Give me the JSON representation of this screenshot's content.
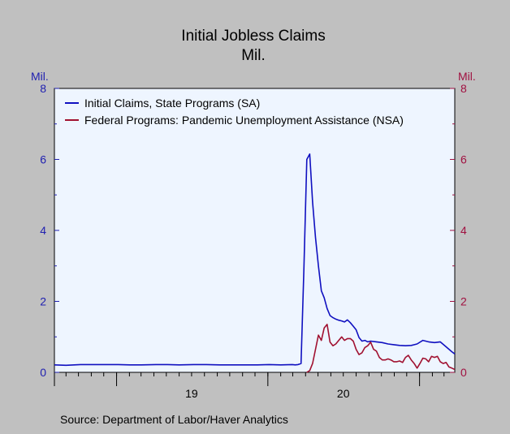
{
  "chart_data": {
    "type": "line",
    "title": "Initial Jobless Claims",
    "subtitle": "Mil.",
    "ylabel_left": "Mil.",
    "ylabel_right": "Mil.",
    "source": "Source: Department of Labor/Haver Analytics",
    "ylim": [
      0,
      8
    ],
    "y_ticks": [
      0,
      2,
      4,
      6,
      8
    ],
    "y_tick_labels": [
      "0",
      "2",
      "4",
      "6",
      "8"
    ],
    "x_range": [
      "2018-08-04",
      "2021-03-27"
    ],
    "x_year_labels": [
      {
        "label": "19",
        "date": "2019-07-01"
      },
      {
        "label": "20",
        "date": "2020-07-01"
      }
    ],
    "x_year_boundaries": [
      "2019-01-01",
      "2020-01-01",
      "2021-01-01"
    ],
    "legend_position": "top-left",
    "grid": false,
    "colors": {
      "background": "#c0c0c0",
      "plot_background": "#eef5ff",
      "left_axis": "#2020b0",
      "right_axis": "#a01040"
    },
    "series": [
      {
        "name": "Initial Claims, State Programs (SA)",
        "color": "#1010c0",
        "x": [
          "2018-08-04",
          "2018-09-01",
          "2018-10-06",
          "2018-11-03",
          "2018-12-01",
          "2019-01-05",
          "2019-02-02",
          "2019-03-02",
          "2019-04-06",
          "2019-05-04",
          "2019-06-01",
          "2019-07-06",
          "2019-08-03",
          "2019-09-07",
          "2019-10-05",
          "2019-11-02",
          "2019-12-07",
          "2020-01-04",
          "2020-02-01",
          "2020-02-29",
          "2020-03-07",
          "2020-03-14",
          "2020-03-21",
          "2020-03-28",
          "2020-04-04",
          "2020-04-11",
          "2020-04-18",
          "2020-04-25",
          "2020-05-02",
          "2020-05-09",
          "2020-05-16",
          "2020-05-23",
          "2020-05-30",
          "2020-06-06",
          "2020-06-13",
          "2020-06-20",
          "2020-06-27",
          "2020-07-04",
          "2020-07-11",
          "2020-07-18",
          "2020-07-25",
          "2020-08-01",
          "2020-08-08",
          "2020-08-15",
          "2020-08-22",
          "2020-08-29",
          "2020-09-05",
          "2020-09-19",
          "2020-10-03",
          "2020-10-17",
          "2020-10-31",
          "2020-11-14",
          "2020-11-28",
          "2020-12-12",
          "2020-12-26",
          "2021-01-09",
          "2021-01-23",
          "2021-02-06",
          "2021-02-20",
          "2021-03-06",
          "2021-03-20",
          "2021-03-27"
        ],
        "values": [
          0.21,
          0.2,
          0.22,
          0.22,
          0.22,
          0.22,
          0.21,
          0.21,
          0.22,
          0.22,
          0.21,
          0.22,
          0.22,
          0.21,
          0.21,
          0.21,
          0.21,
          0.22,
          0.21,
          0.22,
          0.21,
          0.22,
          0.25,
          2.9,
          6.0,
          6.15,
          4.8,
          3.8,
          3.0,
          2.3,
          2.1,
          1.8,
          1.6,
          1.54,
          1.5,
          1.47,
          1.45,
          1.42,
          1.48,
          1.4,
          1.3,
          1.2,
          0.98,
          0.88,
          0.9,
          0.86,
          0.88,
          0.86,
          0.84,
          0.8,
          0.78,
          0.76,
          0.75,
          0.76,
          0.8,
          0.9,
          0.86,
          0.84,
          0.86,
          0.72,
          0.58,
          0.52
        ]
      },
      {
        "name": "Federal Programs: Pandemic Unemployment Assistance (NSA)",
        "color": "#a01030",
        "x": [
          "2020-04-04",
          "2020-04-11",
          "2020-04-18",
          "2020-04-25",
          "2020-05-02",
          "2020-05-09",
          "2020-05-16",
          "2020-05-23",
          "2020-05-30",
          "2020-06-06",
          "2020-06-13",
          "2020-06-20",
          "2020-06-27",
          "2020-07-04",
          "2020-07-11",
          "2020-07-18",
          "2020-07-25",
          "2020-08-01",
          "2020-08-08",
          "2020-08-15",
          "2020-08-22",
          "2020-08-29",
          "2020-09-05",
          "2020-09-12",
          "2020-09-19",
          "2020-09-26",
          "2020-10-03",
          "2020-10-10",
          "2020-10-17",
          "2020-10-24",
          "2020-10-31",
          "2020-11-07",
          "2020-11-14",
          "2020-11-21",
          "2020-11-28",
          "2020-12-05",
          "2020-12-12",
          "2020-12-19",
          "2020-12-26",
          "2021-01-02",
          "2021-01-09",
          "2021-01-16",
          "2021-01-23",
          "2021-01-30",
          "2021-02-06",
          "2021-02-13",
          "2021-02-20",
          "2021-02-27",
          "2021-03-06",
          "2021-03-13",
          "2021-03-20",
          "2021-03-27"
        ],
        "values": [
          0.0,
          0.05,
          0.25,
          0.65,
          1.05,
          0.9,
          1.25,
          1.35,
          0.85,
          0.75,
          0.8,
          0.9,
          1.0,
          0.9,
          0.95,
          0.95,
          0.88,
          0.65,
          0.5,
          0.55,
          0.7,
          0.75,
          0.85,
          0.65,
          0.6,
          0.42,
          0.35,
          0.35,
          0.38,
          0.35,
          0.3,
          0.3,
          0.32,
          0.28,
          0.42,
          0.48,
          0.35,
          0.25,
          0.12,
          0.25,
          0.4,
          0.38,
          0.3,
          0.45,
          0.42,
          0.45,
          0.3,
          0.25,
          0.28,
          0.15,
          0.12,
          0.08
        ]
      }
    ]
  }
}
